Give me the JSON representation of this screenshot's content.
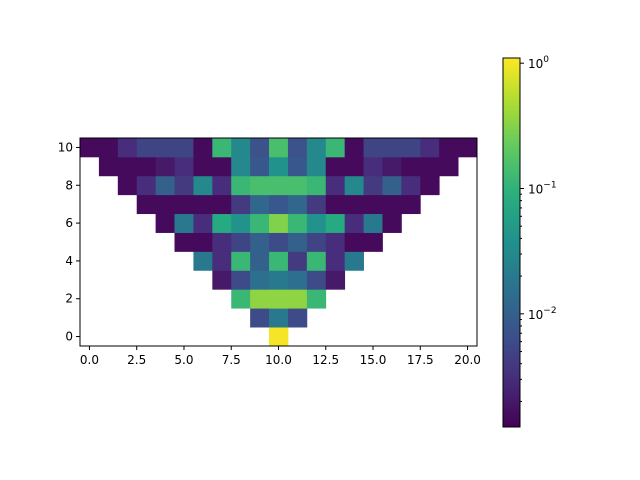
{
  "chart_data": {
    "type": "heatmap",
    "title": "",
    "xlabel": "",
    "ylabel": "",
    "colormap": "viridis",
    "color_scale": "log",
    "xlim": [
      -0.5,
      20.5
    ],
    "ylim": [
      -0.5,
      10.5
    ],
    "x_ticks": [
      {
        "value": 0,
        "label": "0.0"
      },
      {
        "value": 2.5,
        "label": "2.5"
      },
      {
        "value": 5,
        "label": "5.0"
      },
      {
        "value": 7.5,
        "label": "7.5"
      },
      {
        "value": 10,
        "label": "10.0"
      },
      {
        "value": 12.5,
        "label": "12.5"
      },
      {
        "value": 15,
        "label": "15.0"
      },
      {
        "value": 17.5,
        "label": "17.5"
      },
      {
        "value": 20,
        "label": "20.0"
      }
    ],
    "y_ticks": [
      {
        "value": 0,
        "label": "0"
      },
      {
        "value": 2,
        "label": "2"
      },
      {
        "value": 4,
        "label": "4"
      },
      {
        "value": 6,
        "label": "6"
      },
      {
        "value": 8,
        "label": "8"
      },
      {
        "value": 10,
        "label": "10"
      }
    ],
    "colorbar": {
      "range": [
        0.00125,
        1.1
      ],
      "major_ticks": [
        {
          "value": 0.01,
          "base": "10",
          "exponent": "−2"
        },
        {
          "value": 0.1,
          "base": "10",
          "exponent": "−1"
        },
        {
          "value": 1,
          "base": "10",
          "exponent": "0"
        }
      ],
      "minor_ticks": [
        0.002,
        0.003,
        0.004,
        0.005,
        0.006,
        0.007,
        0.008,
        0.009,
        0.02,
        0.03,
        0.04,
        0.05,
        0.06,
        0.07,
        0.08,
        0.09
      ]
    },
    "rows": [
      {
        "y": 0,
        "values": [
          null,
          null,
          null,
          null,
          null,
          null,
          null,
          null,
          null,
          null,
          1.0,
          null,
          null,
          null,
          null,
          null,
          null,
          null,
          null,
          null,
          null
        ]
      },
      {
        "y": 1,
        "values": [
          null,
          null,
          null,
          null,
          null,
          null,
          null,
          null,
          null,
          0.006,
          0.02,
          0.006,
          null,
          null,
          null,
          null,
          null,
          null,
          null,
          null,
          null
        ]
      },
      {
        "y": 2,
        "values": [
          null,
          null,
          null,
          null,
          null,
          null,
          null,
          null,
          0.12,
          0.35,
          0.35,
          0.35,
          0.12,
          null,
          null,
          null,
          null,
          null,
          null,
          null,
          null
        ]
      },
      {
        "y": 3,
        "values": [
          null,
          null,
          null,
          null,
          null,
          null,
          null,
          0.002,
          0.006,
          0.015,
          0.02,
          0.015,
          0.006,
          0.002,
          null,
          null,
          null,
          null,
          null,
          null,
          null
        ]
      },
      {
        "y": 4,
        "values": [
          null,
          null,
          null,
          null,
          null,
          null,
          0.02,
          0.003,
          0.12,
          0.01,
          0.12,
          0.004,
          0.12,
          0.003,
          0.02,
          null,
          null,
          null,
          null,
          null,
          null
        ]
      },
      {
        "y": 5,
        "values": [
          null,
          null,
          null,
          null,
          null,
          0.0015,
          0.0015,
          0.003,
          0.005,
          0.01,
          0.006,
          0.01,
          0.005,
          0.003,
          0.0015,
          0.0015,
          null,
          null,
          null,
          null,
          null
        ]
      },
      {
        "y": 6,
        "values": [
          null,
          null,
          null,
          null,
          0.0015,
          0.02,
          0.003,
          0.08,
          0.04,
          0.12,
          0.3,
          0.12,
          0.04,
          0.08,
          0.003,
          0.02,
          0.0015,
          null,
          null,
          null,
          null
        ]
      },
      {
        "y": 7,
        "values": [
          null,
          null,
          null,
          0.0015,
          0.0015,
          0.0015,
          0.0015,
          0.0015,
          0.004,
          0.012,
          0.008,
          0.012,
          0.004,
          0.0015,
          0.0015,
          0.0015,
          0.0015,
          0.0015,
          null,
          null,
          null
        ]
      },
      {
        "y": 8,
        "values": [
          null,
          null,
          0.0015,
          0.003,
          0.01,
          0.004,
          0.03,
          0.003,
          0.12,
          0.15,
          0.15,
          0.15,
          0.12,
          0.003,
          0.03,
          0.004,
          0.01,
          0.003,
          0.0015,
          null,
          null
        ]
      },
      {
        "y": 9,
        "values": [
          null,
          0.0015,
          0.0015,
          0.0015,
          0.002,
          0.003,
          0.0015,
          0.0015,
          0.03,
          0.008,
          0.04,
          0.008,
          0.03,
          0.0015,
          0.0015,
          0.003,
          0.002,
          0.0015,
          0.0015,
          0.0015,
          null
        ]
      },
      {
        "y": 10,
        "values": [
          0.0015,
          0.0015,
          0.003,
          0.005,
          0.005,
          0.005,
          0.0015,
          0.12,
          0.03,
          0.007,
          0.15,
          0.007,
          0.03,
          0.12,
          0.0015,
          0.005,
          0.005,
          0.005,
          0.003,
          0.0015,
          0.0015
        ]
      }
    ]
  }
}
